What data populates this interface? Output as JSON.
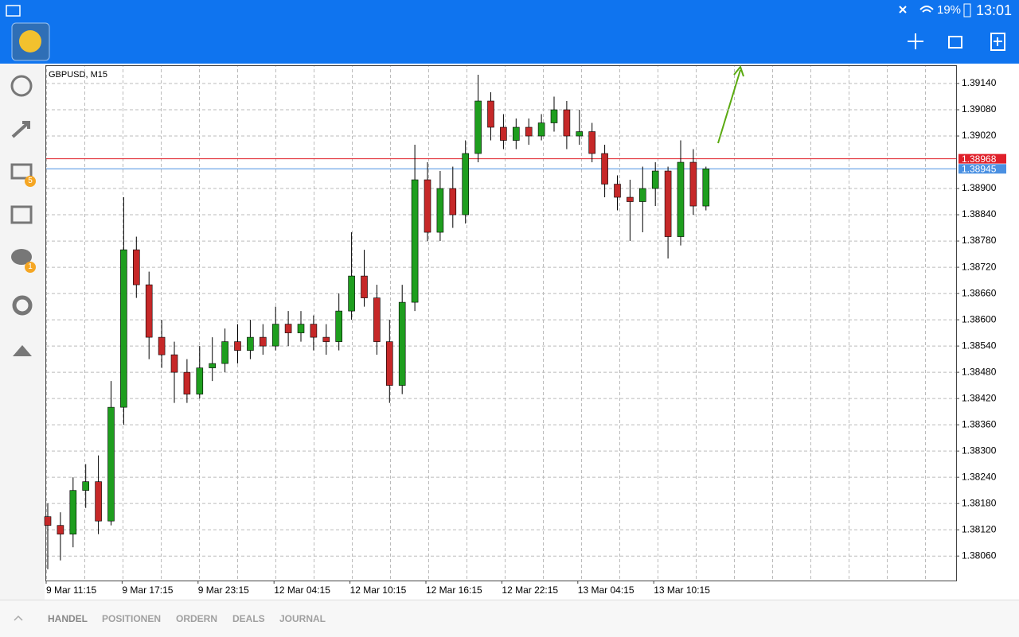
{
  "status_bar": {
    "battery": "19%",
    "time": "13:01"
  },
  "sidebar": {
    "badges": [
      "5",
      "1"
    ]
  },
  "tabs": [
    "HANDEL",
    "POSITIONEN",
    "ORDERN",
    "DEALS",
    "JOURNAL"
  ],
  "chart_data": {
    "type": "candlestick",
    "title": "GBPUSD, M15",
    "categories": [
      "9 Mar 11:15",
      null,
      null,
      null,
      null,
      null,
      "9 Mar 17:15",
      null,
      null,
      null,
      null,
      null,
      "9 Mar 23:15",
      null,
      null,
      null,
      null,
      null,
      "12 Mar 04:15",
      null,
      null,
      null,
      null,
      null,
      "12 Mar 10:15",
      null,
      null,
      null,
      null,
      null,
      "12 Mar 16:15",
      null,
      null,
      null,
      null,
      null,
      "12 Mar 22:15",
      null,
      null,
      null,
      null,
      null,
      "13 Mar 04:15",
      null,
      null,
      null,
      null,
      null,
      "13 Mar 10:15",
      null,
      null,
      null,
      null
    ],
    "open": [
      1.3815,
      1.3813,
      1.3811,
      1.3821,
      1.3823,
      1.3814,
      1.384,
      1.3876,
      1.3868,
      1.3856,
      1.3852,
      1.3848,
      1.3843,
      1.3849,
      1.385,
      1.3855,
      1.3853,
      1.3856,
      1.3854,
      1.3859,
      1.3857,
      1.3859,
      1.3856,
      1.3855,
      1.3862,
      1.387,
      1.3865,
      1.3855,
      1.3845,
      1.3864,
      1.3892,
      1.388,
      1.389,
      1.3884,
      1.3898,
      1.391,
      1.3904,
      1.3901,
      1.3904,
      1.3902,
      1.3905,
      1.3908,
      1.3902,
      1.3903,
      1.3898,
      1.3891,
      1.3888,
      1.3887,
      1.389,
      1.3894,
      1.3879,
      1.3896,
      1.3886
    ],
    "high": [
      1.3818,
      1.3816,
      1.3824,
      1.3827,
      1.3829,
      1.3846,
      1.3888,
      1.3879,
      1.3871,
      1.386,
      1.3855,
      1.3851,
      1.3854,
      1.3856,
      1.3858,
      1.3859,
      1.386,
      1.3859,
      1.3863,
      1.3862,
      1.3862,
      1.3861,
      1.3859,
      1.3866,
      1.388,
      1.3876,
      1.3868,
      1.386,
      1.3868,
      1.39,
      1.3896,
      1.3894,
      1.3895,
      1.3901,
      1.3916,
      1.3912,
      1.3907,
      1.3906,
      1.3906,
      1.3907,
      1.3911,
      1.391,
      1.3908,
      1.3905,
      1.39,
      1.3893,
      1.3892,
      1.3895,
      1.3896,
      1.3895,
      1.3901,
      1.3899,
      1.3895
    ],
    "low": [
      1.3803,
      1.3805,
      1.3808,
      1.3817,
      1.3811,
      1.3813,
      1.3836,
      1.3865,
      1.3851,
      1.3849,
      1.3841,
      1.3841,
      1.3842,
      1.3846,
      1.3848,
      1.385,
      1.3851,
      1.3852,
      1.3853,
      1.3854,
      1.3855,
      1.3853,
      1.3852,
      1.3853,
      1.386,
      1.3863,
      1.3852,
      1.3841,
      1.3843,
      1.3862,
      1.3878,
      1.3878,
      1.3881,
      1.3882,
      1.3896,
      1.3901,
      1.3899,
      1.3899,
      1.39,
      1.3901,
      1.3903,
      1.3899,
      1.39,
      1.3896,
      1.3888,
      1.3885,
      1.3878,
      1.388,
      1.3886,
      1.3874,
      1.3877,
      1.3884,
      1.3885
    ],
    "close": [
      1.3813,
      1.3811,
      1.3821,
      1.3823,
      1.3814,
      1.384,
      1.3876,
      1.3868,
      1.3856,
      1.3852,
      1.3848,
      1.3843,
      1.3849,
      1.385,
      1.3855,
      1.3853,
      1.3856,
      1.3854,
      1.3859,
      1.3857,
      1.3859,
      1.3856,
      1.3855,
      1.3862,
      1.387,
      1.3865,
      1.3855,
      1.3845,
      1.3864,
      1.3892,
      1.388,
      1.389,
      1.3884,
      1.3898,
      1.391,
      1.3904,
      1.3901,
      1.3904,
      1.3902,
      1.3905,
      1.3908,
      1.3902,
      1.3903,
      1.3898,
      1.3891,
      1.3888,
      1.3887,
      1.389,
      1.3894,
      1.3879,
      1.3896,
      1.3886,
      1.38945
    ],
    "up_color": "#1e9e1e",
    "down_color": "#c62828",
    "ylim": [
      1.38004,
      1.3918
    ],
    "yticks": [
      {
        "value": 1.3914,
        "label": "1.39140"
      },
      {
        "value": 1.3908,
        "label": "1.39080"
      },
      {
        "value": 1.3902,
        "label": "1.39020"
      },
      {
        "value": 1.389,
        "label": "1.38900"
      },
      {
        "value": 1.3884,
        "label": "1.38840"
      },
      {
        "value": 1.3878,
        "label": "1.38780"
      },
      {
        "value": 1.3872,
        "label": "1.38720"
      },
      {
        "value": 1.3866,
        "label": "1.38660"
      },
      {
        "value": 1.386,
        "label": "1.38600"
      },
      {
        "value": 1.3854,
        "label": "1.38540"
      },
      {
        "value": 1.3848,
        "label": "1.38480"
      },
      {
        "value": 1.3842,
        "label": "1.38420"
      },
      {
        "value": 1.3836,
        "label": "1.38360"
      },
      {
        "value": 1.383,
        "label": "1.38300"
      },
      {
        "value": 1.3824,
        "label": "1.38240"
      },
      {
        "value": 1.3818,
        "label": "1.38180"
      },
      {
        "value": 1.3812,
        "label": "1.38120"
      },
      {
        "value": 1.3806,
        "label": "1.38060"
      }
    ],
    "grid": true,
    "price_lines": [
      {
        "value": 1.38968,
        "color": "#e0202a"
      },
      {
        "value": 1.38945,
        "color": "#4a90e2"
      }
    ]
  }
}
